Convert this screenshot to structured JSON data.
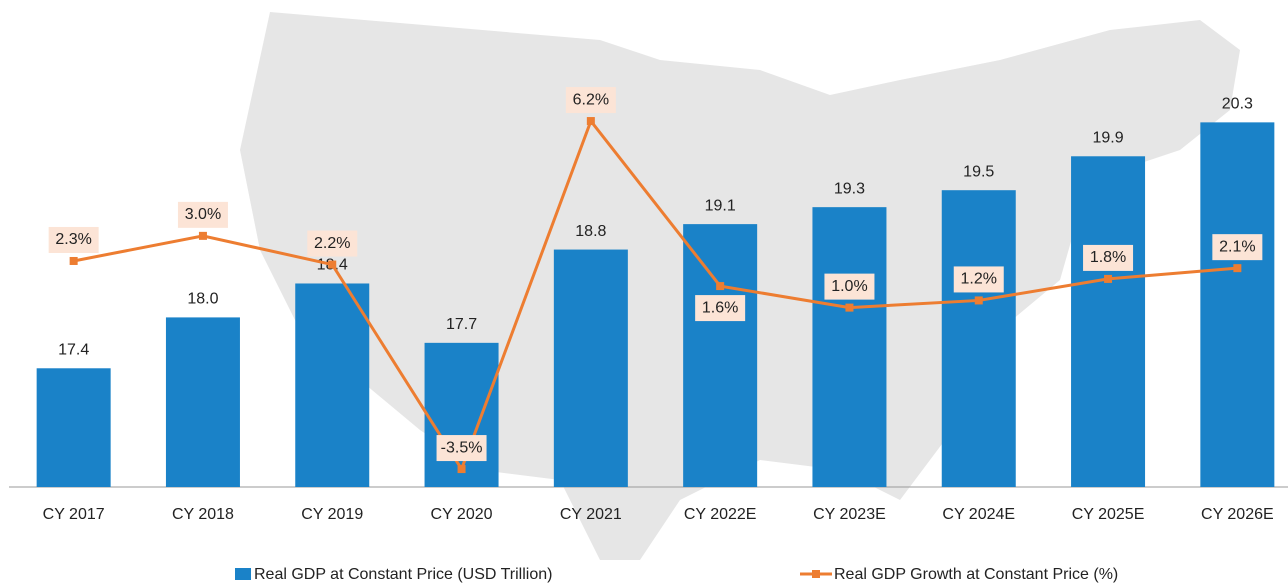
{
  "chart_data": {
    "type": "bar_line",
    "categories": [
      "CY 2017",
      "CY 2018",
      "CY 2019",
      "CY 2020",
      "CY 2021",
      "CY 2022E",
      "CY 2023E",
      "CY 2024E",
      "CY 2025E",
      "CY 2026E"
    ],
    "series": [
      {
        "name": "Real GDP at Constant Price (USD Trillion)",
        "color": "#1a82c8",
        "type": "bar",
        "values": [
          17.4,
          18.0,
          18.4,
          17.7,
          18.8,
          19.1,
          19.3,
          19.5,
          19.9,
          20.3
        ],
        "value_labels": [
          "17.4",
          "18.0",
          "18.4",
          "17.7",
          "18.8",
          "19.1",
          "19.3",
          "19.5",
          "19.9",
          "20.3"
        ]
      },
      {
        "name": "Real GDP Growth at Constant Price (%)",
        "color": "#ed7d31",
        "type": "line",
        "axis": "y2",
        "values": [
          2.3,
          3.0,
          2.2,
          -3.5,
          6.2,
          1.6,
          1.0,
          1.2,
          1.8,
          2.1
        ],
        "value_labels": [
          "2.3%",
          "3.0%",
          "2.2%",
          "-3.5%",
          "6.2%",
          "1.6%",
          "1.0%",
          "1.2%",
          "1.8%",
          "2.1%"
        ]
      }
    ],
    "ylim": [
      16,
      21.5
    ],
    "y2lim": [
      -4,
      9
    ],
    "grid": false,
    "legend": "bottom"
  }
}
